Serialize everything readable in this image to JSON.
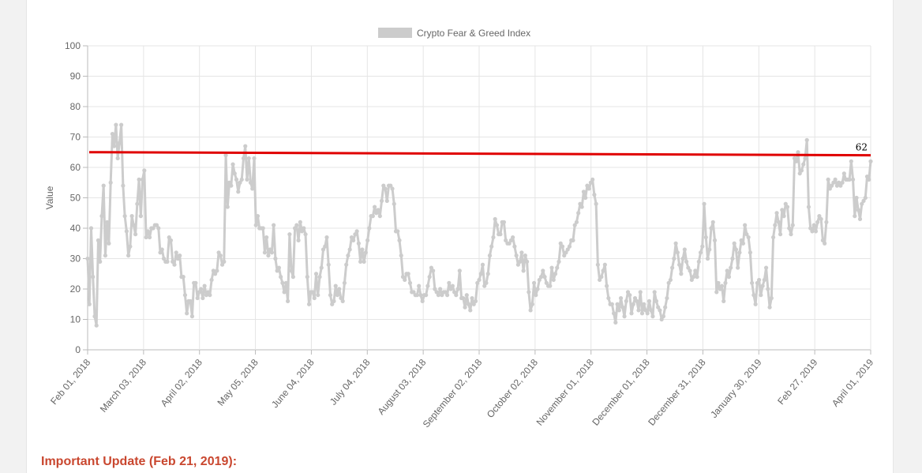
{
  "page": {
    "update_heading": "Important Update (Feb 21, 2019):"
  },
  "chart_data": {
    "type": "line",
    "title": "",
    "ylabel": "Value",
    "xlabel": "",
    "ylim": [
      0,
      100
    ],
    "y_ticks": [
      0,
      10,
      20,
      30,
      40,
      50,
      60,
      70,
      80,
      90,
      100
    ],
    "x_tick_labels": [
      "Feb 01, 2018",
      "March 03, 2018",
      "April 02, 2018",
      "May 05, 2018",
      "June 04, 2018",
      "July 04, 2018",
      "August 03, 2018",
      "September 02, 2018",
      "October 02, 2018",
      "November 01, 2018",
      "December 01, 2018",
      "December 31, 2018",
      "January 30, 2019",
      "Feb 27, 2019",
      "April 01, 2019"
    ],
    "legend": {
      "label": "Crypto Fear & Greed Index",
      "position": "top-center",
      "color": "#cccccc"
    },
    "grid": true,
    "series": [
      {
        "name": "Crypto Fear & Greed Index",
        "color": "#cccccc",
        "values": [
          30,
          15,
          40,
          24,
          11,
          8,
          36,
          29,
          44,
          54,
          31,
          42,
          35,
          55,
          71,
          67,
          74,
          63,
          68,
          74,
          54,
          44,
          39,
          31,
          34,
          44,
          41,
          38,
          48,
          56,
          44,
          56,
          59,
          37,
          39,
          37,
          40,
          40,
          41,
          41,
          40,
          32,
          33,
          30,
          29,
          29,
          37,
          36,
          29,
          28,
          32,
          30,
          31,
          24,
          24,
          18,
          12,
          16,
          16,
          11,
          22,
          22,
          17,
          19,
          20,
          17,
          21,
          18,
          19,
          18,
          23,
          26,
          25,
          26,
          32,
          31,
          28,
          29,
          64,
          47,
          55,
          54,
          61,
          58,
          56,
          52,
          55,
          56,
          63,
          67,
          56,
          63,
          55,
          53,
          63,
          41,
          44,
          40,
          40,
          40,
          32,
          37,
          31,
          33,
          32,
          41,
          30,
          26,
          27,
          24,
          22,
          19,
          22,
          16,
          38,
          26,
          24,
          40,
          41,
          36,
          42,
          39,
          40,
          38,
          24,
          15,
          19,
          19,
          17,
          25,
          18,
          24,
          27,
          33,
          34,
          37,
          28,
          18,
          15,
          16,
          21,
          18,
          20,
          17,
          16,
          22,
          28,
          31,
          33,
          37,
          36,
          38,
          39,
          35,
          29,
          33,
          29,
          32,
          36,
          40,
          44,
          44,
          47,
          45,
          46,
          44,
          49,
          54,
          53,
          49,
          54,
          54,
          53,
          48,
          39,
          39,
          36,
          31,
          24,
          23,
          25,
          25,
          22,
          19,
          19,
          18,
          18,
          21,
          18,
          16,
          18,
          18,
          21,
          24,
          27,
          26,
          20,
          19,
          18,
          20,
          18,
          19,
          19,
          18,
          22,
          20,
          21,
          19,
          18,
          20,
          26,
          17,
          17,
          14,
          18,
          15,
          13,
          17,
          15,
          16,
          22,
          23,
          25,
          28,
          21,
          22,
          25,
          31,
          34,
          37,
          43,
          41,
          38,
          38,
          42,
          42,
          36,
          35,
          35,
          36,
          37,
          34,
          31,
          28,
          29,
          32,
          26,
          31,
          29,
          19,
          13,
          15,
          22,
          18,
          20,
          23,
          24,
          26,
          24,
          22,
          21,
          21,
          27,
          23,
          25,
          27,
          29,
          35,
          34,
          31,
          32,
          33,
          34,
          36,
          36,
          41,
          42,
          45,
          48,
          47,
          52,
          50,
          54,
          53,
          55,
          56,
          51,
          48,
          28,
          23,
          24,
          26,
          28,
          21,
          17,
          15,
          15,
          12,
          9,
          15,
          13,
          17,
          14,
          11,
          16,
          19,
          18,
          12,
          15,
          17,
          16,
          13,
          19,
          12,
          15,
          13,
          12,
          16,
          13,
          11,
          19,
          16,
          14,
          13,
          10,
          11,
          14,
          17,
          22,
          23,
          27,
          30,
          35,
          32,
          28,
          25,
          30,
          33,
          29,
          27,
          26,
          23,
          24,
          26,
          24,
          29,
          32,
          34,
          48,
          37,
          30,
          33,
          40,
          42,
          36,
          19,
          22,
          20,
          21,
          16,
          22,
          26,
          24,
          27,
          30,
          35,
          33,
          27,
          32,
          36,
          35,
          41,
          38,
          37,
          32,
          22,
          18,
          15,
          22,
          23,
          18,
          21,
          23,
          27,
          20,
          14,
          17,
          37,
          41,
          45,
          42,
          38,
          46,
          44,
          48,
          47,
          40,
          38,
          41,
          63,
          62,
          65,
          58,
          59,
          61,
          63,
          69,
          47,
          40,
          39,
          41,
          39,
          42,
          44,
          43,
          36,
          35,
          42,
          56,
          53,
          54,
          55,
          56,
          54,
          55,
          54,
          55,
          58,
          56,
          56,
          56,
          62,
          56,
          44,
          50,
          46,
          43,
          48,
          49,
          50,
          57,
          56,
          62
        ]
      }
    ],
    "annotations": [
      {
        "type": "horizontal-line",
        "color": "#e00000",
        "value_start": 65,
        "value_end": 64,
        "label": "62"
      }
    ]
  }
}
